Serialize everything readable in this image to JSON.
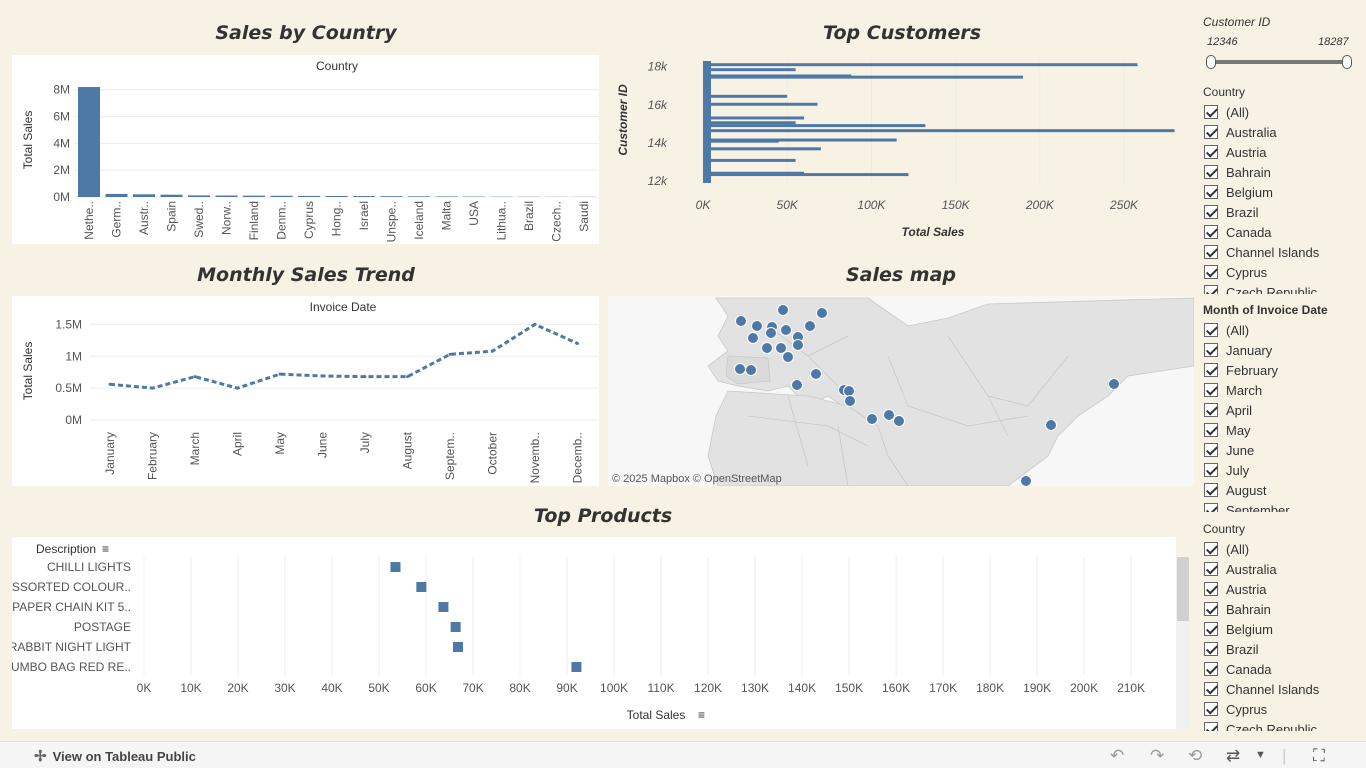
{
  "titles": {
    "sales_by_country": "Sales by Country",
    "top_customers": "Top Customers",
    "monthly_trend": "Monthly Sales Trend",
    "sales_map": "Sales map",
    "top_products": "Top Products"
  },
  "colors": {
    "mark": "#4e79a7",
    "background": "#f8f2e4",
    "grid": "#ececec"
  },
  "chart_data": [
    {
      "id": "sales_by_country",
      "type": "bar",
      "header": "Country",
      "ylabel": "Total Sales",
      "ylim": [
        0,
        8500000
      ],
      "yticks": [
        0,
        2000000,
        4000000,
        6000000,
        8000000
      ],
      "ytick_labels": [
        "0M",
        "2M",
        "4M",
        "6M",
        "8M"
      ],
      "categories": [
        "Nethe..",
        "Germ..",
        "Austr..",
        "Spain",
        "Swed..",
        "Norw..",
        "Finland",
        "Denm..",
        "Cyprus",
        "Hong..",
        "Israel",
        "Unspe..",
        "Iceland",
        "Malta",
        "USA",
        "Lithua..",
        "Brazil",
        "Czech..",
        "Saudi"
      ],
      "values": [
        8200000,
        230000,
        200000,
        170000,
        120000,
        110000,
        100000,
        90000,
        80000,
        75000,
        70000,
        60000,
        50000,
        40000,
        30000,
        20000,
        15000,
        10000,
        8000
      ]
    },
    {
      "id": "top_customers",
      "type": "bar",
      "orientation": "horizontal",
      "ylabel": "Customer ID",
      "xlabel": "Total Sales",
      "xlim": [
        0,
        285000
      ],
      "xticks": [
        0,
        50000,
        100000,
        150000,
        200000,
        250000
      ],
      "xtick_labels": [
        "0K",
        "50K",
        "100K",
        "150K",
        "200K",
        "250K"
      ],
      "ylim": [
        11800,
        18400
      ],
      "yticks": [
        12000,
        14000,
        16000,
        18000
      ],
      "ytick_labels": [
        "12k",
        "14k",
        "16k",
        "18k"
      ],
      "customer_ids": [
        12346,
        12415,
        13089,
        13694,
        14096,
        14156,
        14646,
        14911,
        15061,
        15311,
        16029,
        16446,
        17450,
        17511,
        17841,
        18102
      ],
      "values": [
        122000,
        60000,
        55000,
        70000,
        45000,
        115000,
        280000,
        132000,
        55000,
        60000,
        68000,
        50000,
        190000,
        88000,
        55000,
        258000
      ]
    },
    {
      "id": "monthly_trend",
      "type": "line",
      "header": "Invoice Date",
      "ylabel": "Total Sales",
      "ylim": [
        0,
        1600000
      ],
      "yticks": [
        0,
        500000,
        1000000,
        1500000
      ],
      "ytick_labels": [
        "0M",
        "0.5M",
        "1M",
        "1.5M"
      ],
      "categories": [
        "January",
        "February",
        "March",
        "April",
        "May",
        "June",
        "July",
        "August",
        "Septem..",
        "October",
        "Novemb..",
        "Decemb.."
      ],
      "values": [
        560000,
        500000,
        680000,
        500000,
        720000,
        690000,
        680000,
        680000,
        1030000,
        1080000,
        1500000,
        1200000
      ]
    },
    {
      "id": "top_products",
      "type": "bar",
      "orientation": "horizontal",
      "mark": "square",
      "ylabel": "Description",
      "xlabel": "Total Sales",
      "xlim": [
        0,
        217000
      ],
      "xticks": [
        0,
        10000,
        20000,
        30000,
        40000,
        50000,
        60000,
        70000,
        80000,
        90000,
        100000,
        110000,
        120000,
        130000,
        140000,
        150000,
        160000,
        170000,
        180000,
        190000,
        200000,
        210000
      ],
      "xtick_labels": [
        "0K",
        "10K",
        "20K",
        "30K",
        "40K",
        "50K",
        "60K",
        "70K",
        "80K",
        "90K",
        "100K",
        "110K",
        "120K",
        "130K",
        "140K",
        "150K",
        "160K",
        "170K",
        "180K",
        "190K",
        "200K",
        "210K"
      ],
      "categories": [
        "CHILLI LIGHTS",
        "ASSORTED COLOUR..",
        "PAPER CHAIN KIT 5..",
        "POSTAGE",
        "RABBIT NIGHT LIGHT",
        "JUMBO BAG RED RE.."
      ],
      "values": [
        53500,
        59000,
        63700,
        66300,
        66800,
        92000
      ]
    }
  ],
  "map": {
    "attribution": "© 2025 Mapbox  © OpenStreetMap",
    "country_dots": [
      "Iceland",
      "Norway",
      "Ireland",
      "United Kingdom",
      "Netherlands",
      "Denmark",
      "Finland",
      "Belgium",
      "Germany",
      "Poland",
      "France",
      "Switzerland",
      "Austria",
      "Czech Republic",
      "Italy",
      "Portugal",
      "Spain",
      "Malta",
      "Greece",
      "Cyprus",
      "Lebanon",
      "Israel",
      "Saudi Arabia",
      "Bahrain",
      "United Arab Emirates",
      "Hong Kong",
      "Japan",
      "Singapore"
    ]
  },
  "filters": {
    "customer_id": {
      "label": "Customer ID",
      "min": "12346",
      "max": "18287"
    },
    "country": {
      "label": "Country",
      "items": [
        "(All)",
        "Australia",
        "Austria",
        "Bahrain",
        "Belgium",
        "Brazil",
        "Canada",
        "Channel Islands",
        "Cyprus",
        "Czech Republic"
      ]
    },
    "month": {
      "label": "Month of Invoice Date",
      "items": [
        "(All)",
        "January",
        "February",
        "March",
        "April",
        "May",
        "June",
        "July",
        "August",
        "September"
      ]
    },
    "country2": {
      "label": "Country",
      "items": [
        "(All)",
        "Australia",
        "Austria",
        "Bahrain",
        "Belgium",
        "Brazil",
        "Canada",
        "Channel Islands",
        "Cyprus",
        "Czech Republic"
      ]
    }
  },
  "footer": {
    "view_on_public": "View on Tableau Public"
  }
}
